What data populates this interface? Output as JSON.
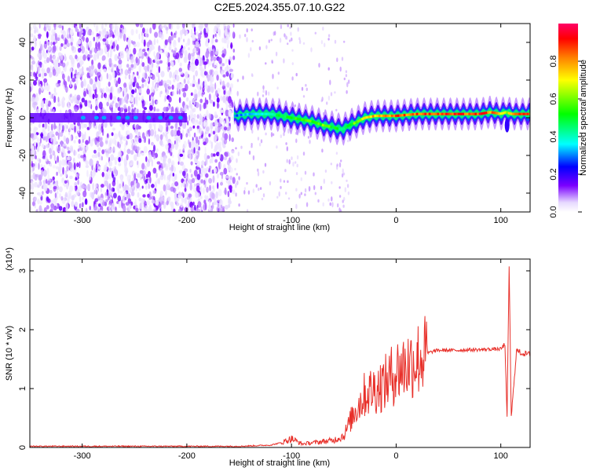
{
  "title": "C2E5.2024.355.07.10.G22",
  "chart_data": [
    {
      "type": "heatmap",
      "xlabel": "Height of straight line (km)",
      "ylabel": "Frequency (Hz)",
      "xlim": [
        -350,
        128
      ],
      "ylim": [
        -50,
        50
      ],
      "xticks": [
        -300,
        -200,
        -100,
        0,
        100
      ],
      "yticks": [
        -40,
        -20,
        0,
        20,
        40
      ],
      "grid": false,
      "colorbar": {
        "label": "Normalized spectral amplitude",
        "range": [
          0,
          1
        ],
        "ticks": [
          0.0,
          0.2,
          0.4,
          0.6,
          0.8
        ],
        "tick_labels": [
          "0.0",
          "0.2",
          "0.4",
          "0.6",
          "0.8"
        ],
        "colors": [
          "#ffffff",
          "#7b00ff",
          "#0000ff",
          "#00ffff",
          "#00ff00",
          "#ffff00",
          "#ff8000",
          "#ff0000",
          "#ff0066"
        ]
      },
      "ridge": {
        "x": [
          -155,
          -140,
          -120,
          -100,
          -90,
          -80,
          -70,
          -60,
          -55,
          -50,
          -45,
          -40,
          -30,
          -20,
          -10,
          0,
          20,
          40,
          60,
          80,
          90,
          100,
          105,
          110,
          128
        ],
        "frequency": [
          1,
          2,
          2,
          0,
          -1,
          -2,
          -4,
          -5,
          -6,
          -6,
          -4,
          -3,
          0,
          1,
          1,
          1,
          2,
          2,
          2,
          2,
          3,
          2,
          3,
          2,
          2
        ],
        "amplitude": [
          0.3,
          0.35,
          0.45,
          0.55,
          0.6,
          0.6,
          0.62,
          0.55,
          0.5,
          0.45,
          0.55,
          0.62,
          0.75,
          0.82,
          0.85,
          0.88,
          0.9,
          0.9,
          0.9,
          0.92,
          0.85,
          0.8,
          0.6,
          0.85,
          0.9
        ]
      },
      "noise_region_x": [
        -350,
        -155
      ],
      "tone_line_x": [
        -350,
        -200
      ]
    },
    {
      "type": "line",
      "xlabel": "Height of straight line (km)",
      "ylabel": "SNR (10 * v/v)",
      "multiplier": "(x10⁴)",
      "xlim": [
        -350,
        128
      ],
      "ylim": [
        0,
        3.2
      ],
      "xticks": [
        -300,
        -200,
        -100,
        0,
        100
      ],
      "yticks": [
        0,
        1,
        2,
        3
      ],
      "grid": false,
      "color": "#e8302a",
      "series": [
        {
          "x": [
            -350,
            -300,
            -250,
            -200,
            -150,
            -120,
            -110,
            -100,
            -90,
            -80,
            -70,
            -60,
            -50,
            -45,
            -40,
            -35,
            -30,
            -25,
            -20,
            -15,
            -10,
            -5,
            0,
            5,
            10,
            15,
            20,
            25,
            30,
            35,
            40,
            50,
            60,
            70,
            80,
            90,
            100,
            104,
            106,
            108,
            110,
            115,
            120,
            128
          ],
          "values": [
            0.02,
            0.02,
            0.02,
            0.02,
            0.02,
            0.04,
            0.08,
            0.15,
            0.06,
            0.08,
            0.1,
            0.12,
            0.2,
            0.4,
            0.6,
            0.75,
            0.9,
            0.95,
            1.0,
            1.05,
            1.1,
            1.2,
            1.3,
            1.35,
            1.4,
            1.45,
            1.5,
            1.55,
            1.6,
            1.63,
            1.65,
            1.65,
            1.65,
            1.66,
            1.66,
            1.67,
            1.67,
            1.75,
            0.5,
            3.1,
            0.5,
            1.65,
            1.6,
            1.58
          ]
        }
      ]
    }
  ]
}
